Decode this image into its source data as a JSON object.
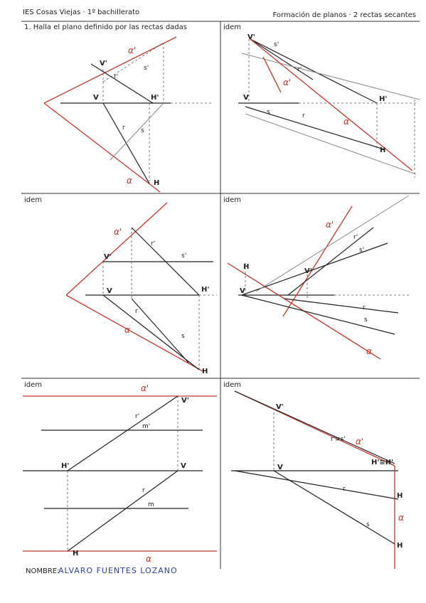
{
  "header": {
    "school": "IES Cosas Viejas · 1º bachillerato",
    "topic": "Formación de planos · 2 rectas secantes"
  },
  "panels": [
    {
      "title": "1. Halla el plano definido por las rectas dadas",
      "labels": [
        "V'",
        "r'",
        "s'",
        "α'",
        "V",
        "H'",
        "r",
        "s",
        "α",
        "H"
      ]
    },
    {
      "title": "idem",
      "labels": [
        "V'",
        "s'",
        "r'",
        "α'",
        "H'",
        "V",
        "r",
        "s",
        "α",
        "H"
      ]
    },
    {
      "title": "idem",
      "labels": [
        "α'",
        "V'",
        "r'",
        "s'",
        "V",
        "H'",
        "r",
        "s",
        "α",
        "H"
      ]
    },
    {
      "title": "idem",
      "labels": [
        "α'",
        "r'",
        "s'",
        "H",
        "V'",
        "V",
        "r",
        "s",
        "α"
      ]
    },
    {
      "title": "idem",
      "labels": [
        "α'",
        "V'",
        "r'",
        "m'",
        "H'",
        "V",
        "r",
        "m",
        "H",
        "α"
      ]
    },
    {
      "title": "idem",
      "labels": [
        "V'",
        "r'≡s'",
        "α'",
        "H'≡H'",
        "V",
        "r",
        "s",
        "H",
        "α",
        "H"
      ]
    }
  ],
  "footer": {
    "name_label": "NOMBRE:",
    "name": "ALVARO FUENTES LOZANO"
  }
}
